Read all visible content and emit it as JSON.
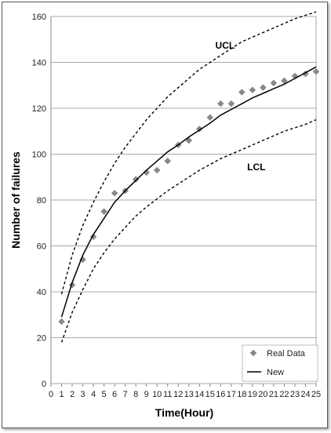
{
  "chart_data": {
    "type": "line",
    "title": "",
    "xlabel": "Time(Hour)",
    "ylabel": "Number of failures",
    "xlim": [
      0,
      25
    ],
    "ylim": [
      0,
      160
    ],
    "xticks": [
      0,
      1,
      2,
      3,
      4,
      5,
      6,
      7,
      8,
      9,
      10,
      11,
      12,
      13,
      14,
      15,
      16,
      17,
      18,
      19,
      20,
      21,
      22,
      23,
      24,
      25
    ],
    "yticks": [
      0,
      20,
      40,
      60,
      80,
      100,
      120,
      140,
      160
    ],
    "grid": "horizontal",
    "legend": "bottom-right",
    "annotations": [
      {
        "text": "UCL",
        "x": 15.5,
        "y": 146
      },
      {
        "text": "LCL",
        "x": 18.5,
        "y": 93
      }
    ],
    "series": [
      {
        "name": "Real Data",
        "kind": "scatter",
        "color": "#888888",
        "x": [
          1,
          2,
          3,
          4,
          5,
          6,
          7,
          8,
          9,
          10,
          11,
          12,
          13,
          14,
          15,
          16,
          17,
          18,
          19,
          20,
          21,
          22,
          23,
          24,
          25
        ],
        "y": [
          27,
          43,
          54,
          64,
          75,
          83,
          84,
          89,
          92,
          93,
          97,
          104,
          106,
          111,
          116,
          122,
          122,
          127,
          128,
          129,
          131,
          132,
          134,
          135,
          136
        ]
      },
      {
        "name": "New",
        "kind": "line",
        "color": "#000000",
        "x": [
          1,
          2,
          3,
          4,
          5,
          6,
          7,
          8,
          9,
          10,
          11,
          12,
          13,
          14,
          15,
          16,
          17,
          18,
          19,
          20,
          21,
          22,
          23,
          24,
          25
        ],
        "y": [
          29,
          44,
          56,
          65,
          72,
          79,
          84,
          88.5,
          93,
          97,
          101,
          104,
          107.5,
          110.5,
          113.5,
          117,
          119.5,
          122,
          124.5,
          126.5,
          128.5,
          130.5,
          133,
          135.5,
          138
        ]
      },
      {
        "name": "UCL",
        "kind": "dashed",
        "color": "#000000",
        "x": [
          1,
          2,
          3,
          4,
          5,
          6,
          7,
          8,
          9,
          10,
          11,
          12,
          13,
          14,
          15,
          16,
          17,
          18,
          19,
          20,
          21,
          22,
          23,
          24,
          25
        ],
        "y": [
          39,
          56,
          69,
          79,
          88,
          96,
          103,
          109,
          115,
          120,
          125,
          129,
          133,
          137,
          140,
          143,
          146,
          149,
          151,
          153,
          155,
          157,
          159,
          160.5,
          162
        ]
      },
      {
        "name": "LCL",
        "kind": "dashed",
        "color": "#000000",
        "x": [
          1,
          2,
          3,
          4,
          5,
          6,
          7,
          8,
          9,
          10,
          11,
          12,
          13,
          14,
          15,
          16,
          17,
          18,
          19,
          20,
          21,
          22,
          23,
          24,
          25
        ],
        "y": [
          18,
          31,
          41,
          50,
          57,
          63,
          68,
          73,
          77,
          80.5,
          84,
          87,
          90,
          93,
          95.5,
          98,
          100,
          102,
          104,
          106,
          108,
          110,
          111.5,
          113,
          115
        ]
      }
    ]
  }
}
